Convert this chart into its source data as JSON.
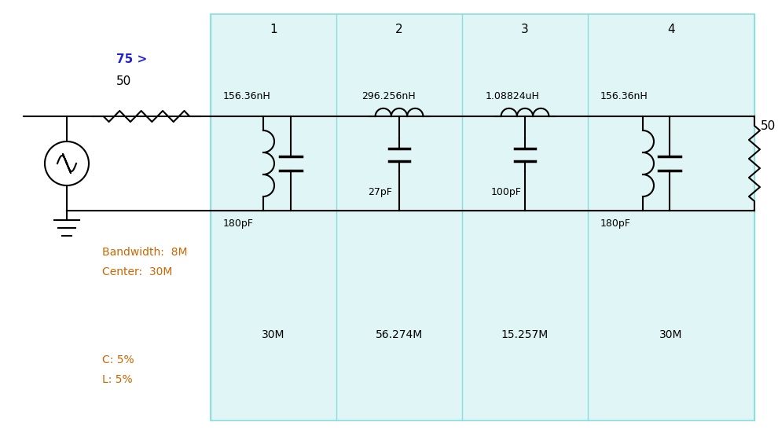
{
  "bg_color": "#e0f5f5",
  "outer_bg": "#ffffff",
  "line_color": "#000000",
  "blue_color": "#2222cc",
  "orange_color": "#cc6600",
  "border_color": "#88dddd",
  "title_75": "75 >",
  "label_50_left": "50",
  "label_50_right": "50",
  "bandwidth_text": "Bandwidth:  8M",
  "center_text": "Center:  30M",
  "c_text": "C: 5%",
  "l_text": "L: 5%",
  "section_labels": [
    "1",
    "2",
    "3",
    "4"
  ],
  "section_resonances": [
    "30M",
    "56.274M",
    "15.257M",
    "30M"
  ],
  "component_labels": [
    "156.36nH",
    "296.256nH",
    "1.08824uH",
    "156.36nH"
  ],
  "shunt_cap_labels": [
    "180pF",
    "180pF"
  ],
  "series_cap_labels": [
    "27pF",
    "100pF"
  ],
  "figsize": [
    9.9,
    5.56
  ],
  "dpi": 100
}
